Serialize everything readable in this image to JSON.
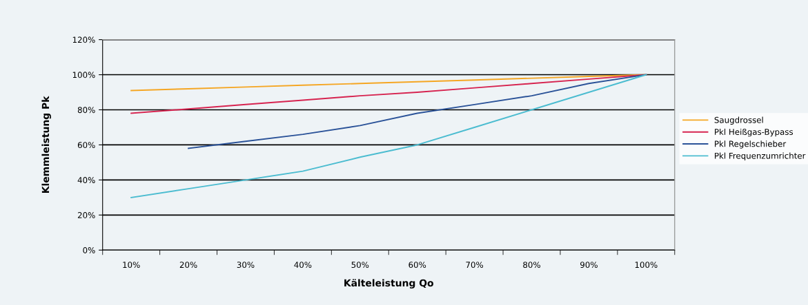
{
  "chart_data": {
    "type": "line",
    "xlabel": "Kälteleistung Qo",
    "ylabel": "Klemmleistung Pk",
    "categories": [
      "10%",
      "20%",
      "30%",
      "40%",
      "50%",
      "60%",
      "70%",
      "80%",
      "90%",
      "100%"
    ],
    "series": [
      {
        "name": "Saugdrossel",
        "color": "#f5a623",
        "values": [
          91,
          92,
          93,
          94,
          95,
          96,
          97,
          98,
          99,
          100
        ]
      },
      {
        "name": "Pkl Heißgas-Bypass",
        "color": "#d6234f",
        "values": [
          78,
          80.5,
          83,
          85.5,
          88,
          90,
          92.5,
          95,
          97.5,
          100
        ]
      },
      {
        "name": "Pkl Regelschieber",
        "color": "#2a5298",
        "values": [
          null,
          58,
          62,
          66,
          71,
          78,
          83,
          88,
          95,
          100
        ]
      },
      {
        "name": "Pkl Frequenzumrichter",
        "color": "#4bbcd0",
        "values": [
          30,
          35,
          40,
          45,
          53,
          60,
          70,
          80,
          90,
          100
        ]
      }
    ],
    "ylim": [
      0,
      120
    ],
    "yticks": [
      {
        "value": 0,
        "label": "0%"
      },
      {
        "value": 20,
        "label": "20%"
      },
      {
        "value": 40,
        "label": "40%"
      },
      {
        "value": 60,
        "label": "60%"
      },
      {
        "value": 80,
        "label": "80%"
      },
      {
        "value": 100,
        "label": "100%"
      },
      {
        "value": 120,
        "label": "120%"
      }
    ],
    "grid": "y",
    "legend": "right",
    "marker": "none",
    "line_style": "solid"
  }
}
